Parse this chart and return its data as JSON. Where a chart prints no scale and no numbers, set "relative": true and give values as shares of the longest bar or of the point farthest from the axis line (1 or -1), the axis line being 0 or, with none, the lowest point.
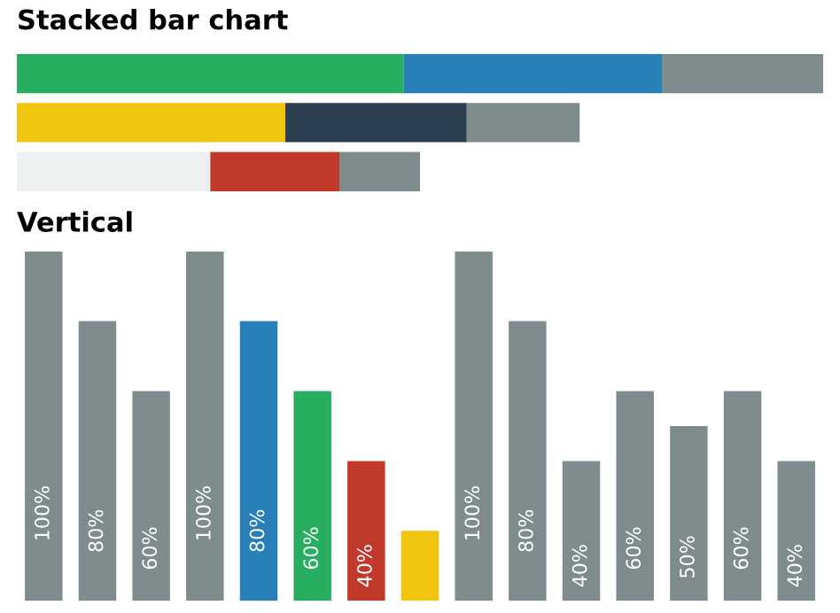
{
  "chart_data": [
    {
      "type": "bar",
      "title": "Stacked bar chart",
      "orientation": "horizontal",
      "stacked": true,
      "relative": true,
      "categories": [
        null,
        null,
        null
      ],
      "series": [
        {
          "colors": [
            "#27ae60",
            "#f1c40f",
            "#ecf0f1"
          ],
          "values": [
            0.48,
            0.333,
            0.24
          ]
        },
        {
          "colors": [
            "#2980b9",
            "#2c3e50",
            "#c0392b"
          ],
          "values": [
            0.32,
            0.225,
            0.16
          ]
        },
        {
          "colors": [
            "#7f8c8d",
            "#7f8c8d",
            "#7f8c8d"
          ],
          "values": [
            0.2,
            0.14,
            0.1
          ]
        }
      ]
    },
    {
      "type": "bar",
      "title": "Vertical",
      "ylim": [
        0,
        100
      ],
      "categories": [
        null,
        null,
        null,
        null,
        null,
        null,
        null,
        null,
        null,
        null,
        null,
        null,
        null,
        null,
        null
      ],
      "values": [
        100,
        80,
        60,
        100,
        80,
        60,
        40,
        20,
        100,
        80,
        40,
        60,
        50,
        60,
        40
      ],
      "colors": [
        "#7f8c8d",
        "#7f8c8d",
        "#7f8c8d",
        "#7f8c8d",
        "#2980b9",
        "#27ae60",
        "#c0392b",
        "#f1c40f",
        "#7f8c8d",
        "#7f8c8d",
        "#7f8c8d",
        "#7f8c8d",
        "#7f8c8d",
        "#7f8c8d",
        "#7f8c8d"
      ],
      "value_labels": [
        "100%",
        "80%",
        "60%",
        "100%",
        "80%",
        "60%",
        "40%",
        null,
        "100%",
        "80%",
        "40%",
        "60%",
        "50%",
        "60%",
        "40%"
      ]
    }
  ]
}
